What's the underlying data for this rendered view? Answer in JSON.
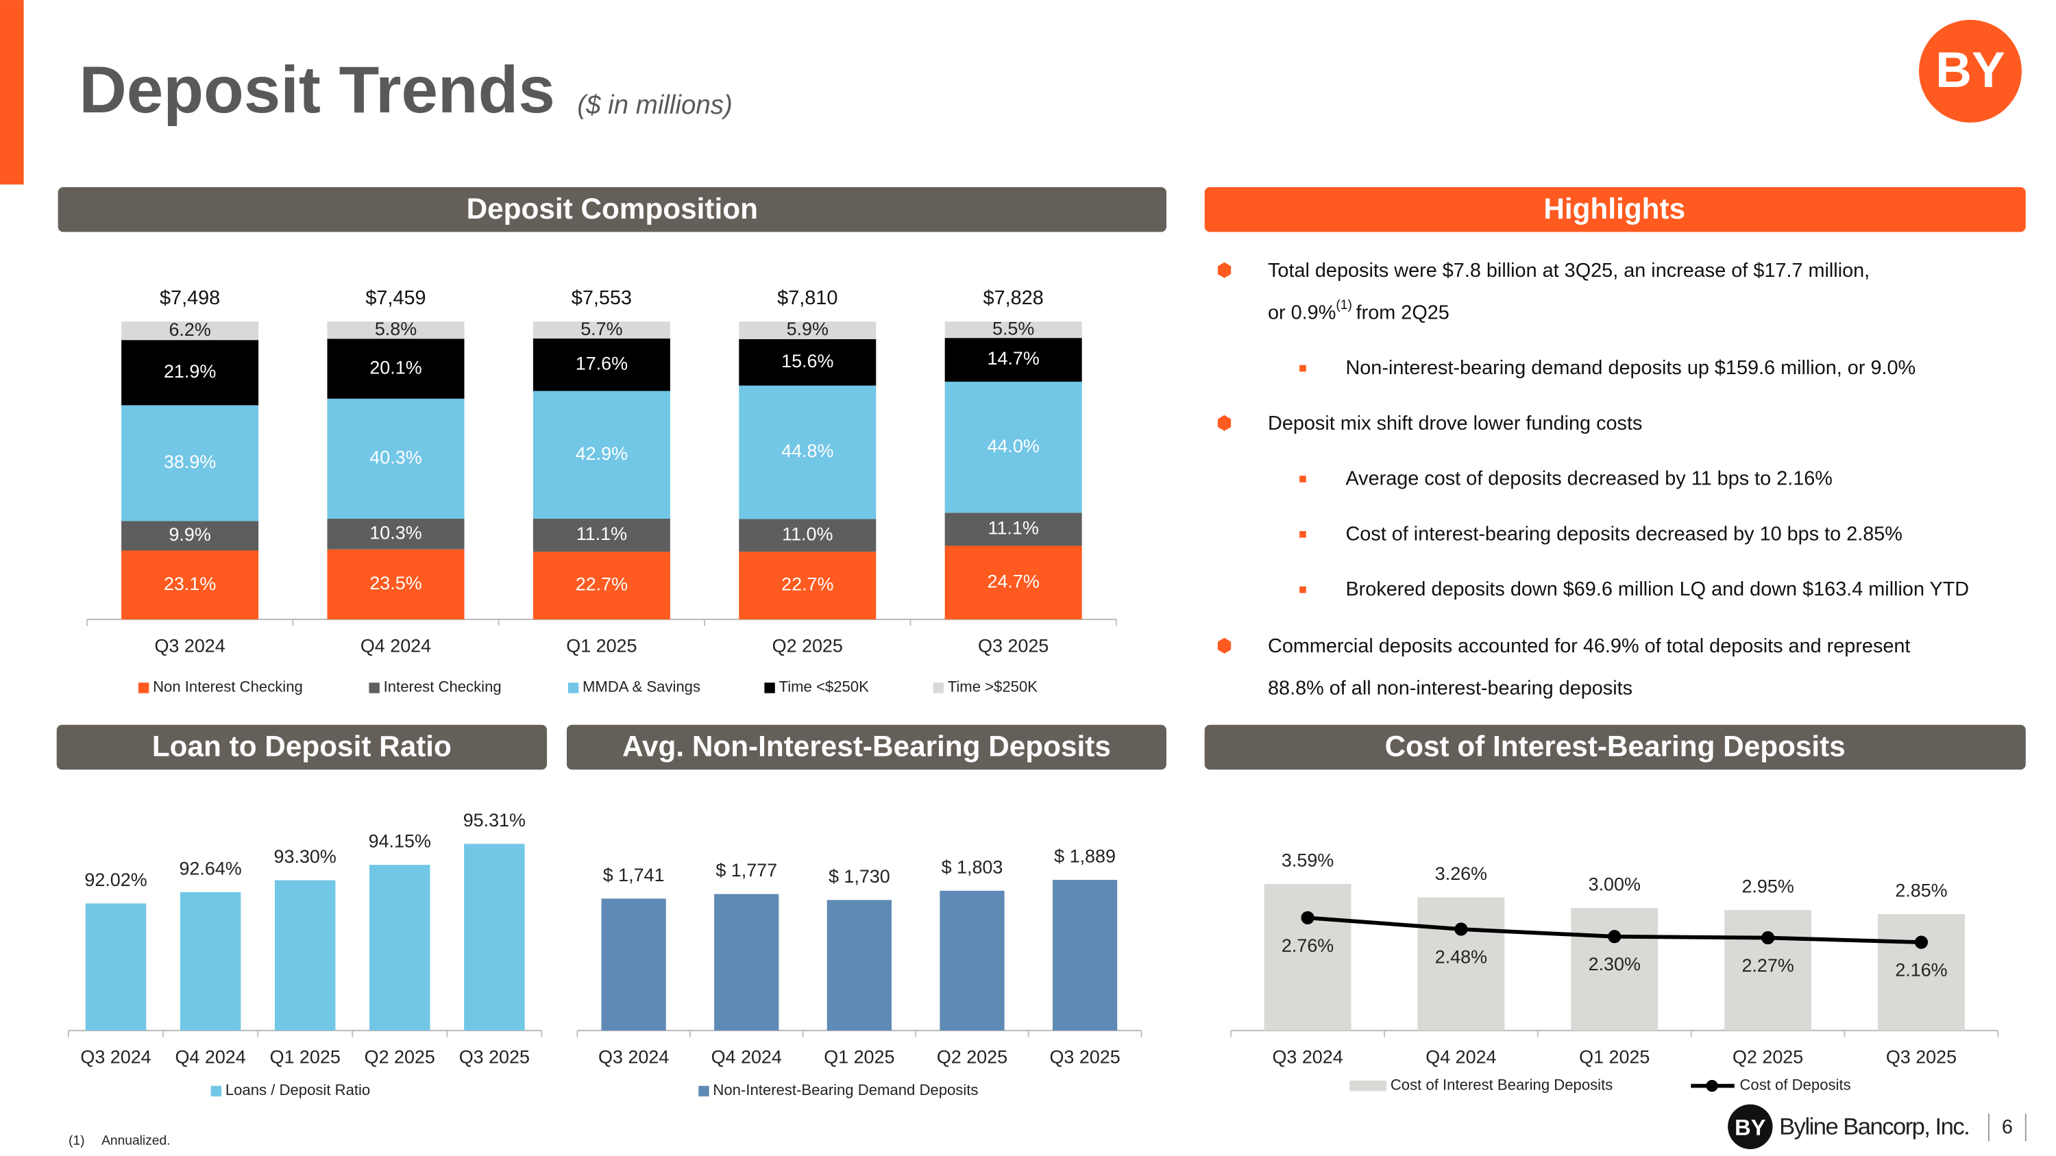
{
  "title": "Deposit Trends",
  "subtitle": "($ in millions)",
  "logo": "BY",
  "highlights": {
    "title": "Highlights",
    "lines": [
      "Total deposits were $7.8 billion at 3Q25, an increase of $17.7 million,",
      "or 0.9%",
      "(1)",
      "from 2Q25",
      "Non-interest-bearing demand deposits up $159.6 million, or 9.0%",
      "Deposit mix shift drove lower funding costs",
      "Average cost of deposits decreased by 11 bps to 2.16%",
      "Cost of interest-bearing deposits decreased by 10 bps to 2.85%",
      "Brokered deposits down $69.6 million LQ and down $163.4 million YTD",
      "Commercial deposits accounted for 46.9% of total deposits and represent",
      "88.8% of all non-interest-bearing deposits"
    ]
  },
  "footnote": {
    "marker": "(1)",
    "text": "Annualized."
  },
  "footer": {
    "company": "Byline Bancorp, Inc.",
    "page": "6"
  },
  "chart_data": [
    {
      "type": "stacked_bar",
      "title": "Deposit Composition",
      "categories": [
        "Q3 2024",
        "Q4 2024",
        "Q1 2025",
        "Q2 2025",
        "Q3 2025"
      ],
      "ylim": [
        0,
        100
      ],
      "totals": {
        "values": [
          7498,
          7459,
          7553,
          7810,
          7828
        ],
        "value_labels": [
          "$7,498",
          "$7,459",
          "$7,553",
          "$7,810",
          "$7,828"
        ]
      },
      "series": [
        {
          "name": "Non Interest Checking",
          "color": "#FF5A1F",
          "label_color": "#ffffff",
          "values": [
            23.1,
            23.5,
            22.7,
            22.7,
            24.7
          ],
          "value_labels": [
            "23.1%",
            "23.5%",
            "22.7%",
            "22.7%",
            "24.7%"
          ]
        },
        {
          "name": "Interest Checking",
          "color": "#5E5E5E",
          "label_color": "#ffffff",
          "values": [
            9.9,
            10.3,
            11.1,
            11.0,
            11.1
          ],
          "value_labels": [
            "9.9%",
            "10.3%",
            "11.1%",
            "11.0%",
            "11.1%"
          ]
        },
        {
          "name": "MMDA & Savings",
          "color": "#72C6E6",
          "label_color": "#ffffff",
          "values": [
            38.9,
            40.3,
            42.9,
            44.8,
            44.0
          ],
          "value_labels": [
            "38.9%",
            "40.3%",
            "42.9%",
            "44.8%",
            "44.0%"
          ]
        },
        {
          "name": "Time <$250K",
          "color": "#000000",
          "label_color": "#ffffff",
          "values": [
            21.9,
            20.1,
            17.6,
            15.6,
            14.7
          ],
          "value_labels": [
            "21.9%",
            "20.1%",
            "17.6%",
            "15.6%",
            "14.7%"
          ]
        },
        {
          "name": "Time >$250K",
          "color": "#D9D9D9",
          "label_color": "#222222",
          "values": [
            6.2,
            5.8,
            5.7,
            5.9,
            5.5
          ],
          "value_labels": [
            "6.2%",
            "5.8%",
            "5.7%",
            "5.9%",
            "5.5%"
          ]
        }
      ]
    },
    {
      "type": "bar",
      "title": "Loan to Deposit Ratio",
      "categories": [
        "Q3 2024",
        "Q4 2024",
        "Q1 2025",
        "Q2 2025",
        "Q3 2025"
      ],
      "ylim": [
        85,
        96.5
      ],
      "series": [
        {
          "name": "Loans / Deposit Ratio",
          "type": "bar",
          "color": "#72C6E6",
          "values": [
            92.02,
            92.64,
            93.3,
            94.15,
            95.31
          ],
          "value_labels": [
            "92.02%",
            "92.64%",
            "93.30%",
            "94.15%",
            "95.31%"
          ]
        }
      ]
    },
    {
      "type": "bar",
      "title": "Avg. Non-Interest-Bearing Deposits",
      "categories": [
        "Q3 2024",
        "Q4 2024",
        "Q1 2025",
        "Q2 2025",
        "Q3 2025"
      ],
      "ylim": [
        700,
        2000
      ],
      "series": [
        {
          "name": "Non-Interest-Bearing Demand Deposits",
          "type": "bar",
          "color": "#5F8AB5",
          "values": [
            1741,
            1777,
            1730,
            1803,
            1889
          ],
          "value_labels": [
            "$ 1,741",
            "$ 1,777",
            "$ 1,730",
            "$ 1,803",
            "$ 1,889"
          ]
        }
      ]
    },
    {
      "type": "bar_line",
      "title": "Cost of Interest-Bearing Deposits",
      "categories": [
        "Q3 2024",
        "Q4 2024",
        "Q1 2025",
        "Q2 2025",
        "Q3 2025"
      ],
      "ylim": [
        0,
        4
      ],
      "series": [
        {
          "name": "Cost of Interest Bearing Deposits",
          "type": "bar",
          "color": "#D9D9D6",
          "values": [
            3.59,
            3.26,
            3.0,
            2.95,
            2.85
          ],
          "value_labels": [
            "3.59%",
            "3.26%",
            "3.00%",
            "2.95%",
            "2.85%"
          ]
        },
        {
          "name": "Cost of Deposits",
          "type": "line",
          "color": "#000000",
          "values": [
            2.76,
            2.48,
            2.3,
            2.27,
            2.16
          ],
          "value_labels": [
            "2.76%",
            "2.48%",
            "2.30%",
            "2.27%",
            "2.16%"
          ]
        }
      ]
    }
  ]
}
